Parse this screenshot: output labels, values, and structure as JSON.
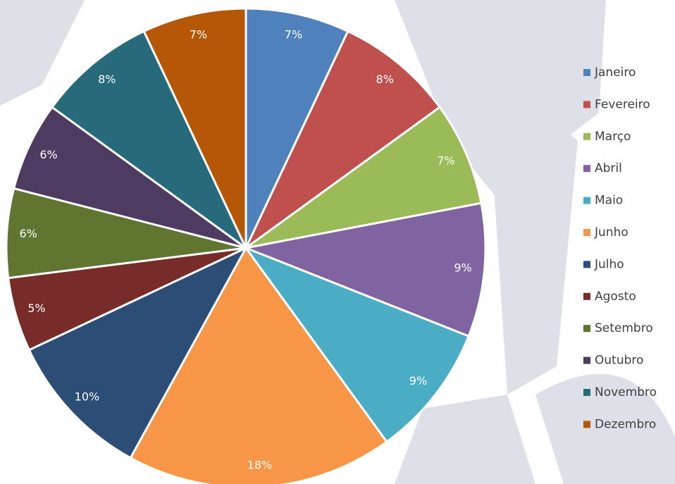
{
  "chart_data": {
    "type": "pie",
    "categories": [
      "Janeiro",
      "Fevereiro",
      "Março",
      "Abril",
      "Maio",
      "Junho",
      "Julho",
      "Agosto",
      "Setembro",
      "Outubro",
      "Novembro",
      "Dezembro"
    ],
    "values": [
      7,
      8,
      7,
      9,
      9,
      18,
      10,
      5,
      6,
      6,
      8,
      7
    ],
    "value_labels": [
      "7%",
      "8%",
      "7%",
      "9%",
      "9%",
      "18%",
      "10%",
      "5%",
      "6%",
      "6%",
      "8%",
      "7%"
    ],
    "colors": [
      "#4f81bd",
      "#c0504d",
      "#9bbb59",
      "#8064a2",
      "#4bacc6",
      "#f79646",
      "#2c4d75",
      "#772c2a",
      "#5f7530",
      "#4d3b62",
      "#276a7c",
      "#b65708"
    ],
    "legend": "right"
  }
}
